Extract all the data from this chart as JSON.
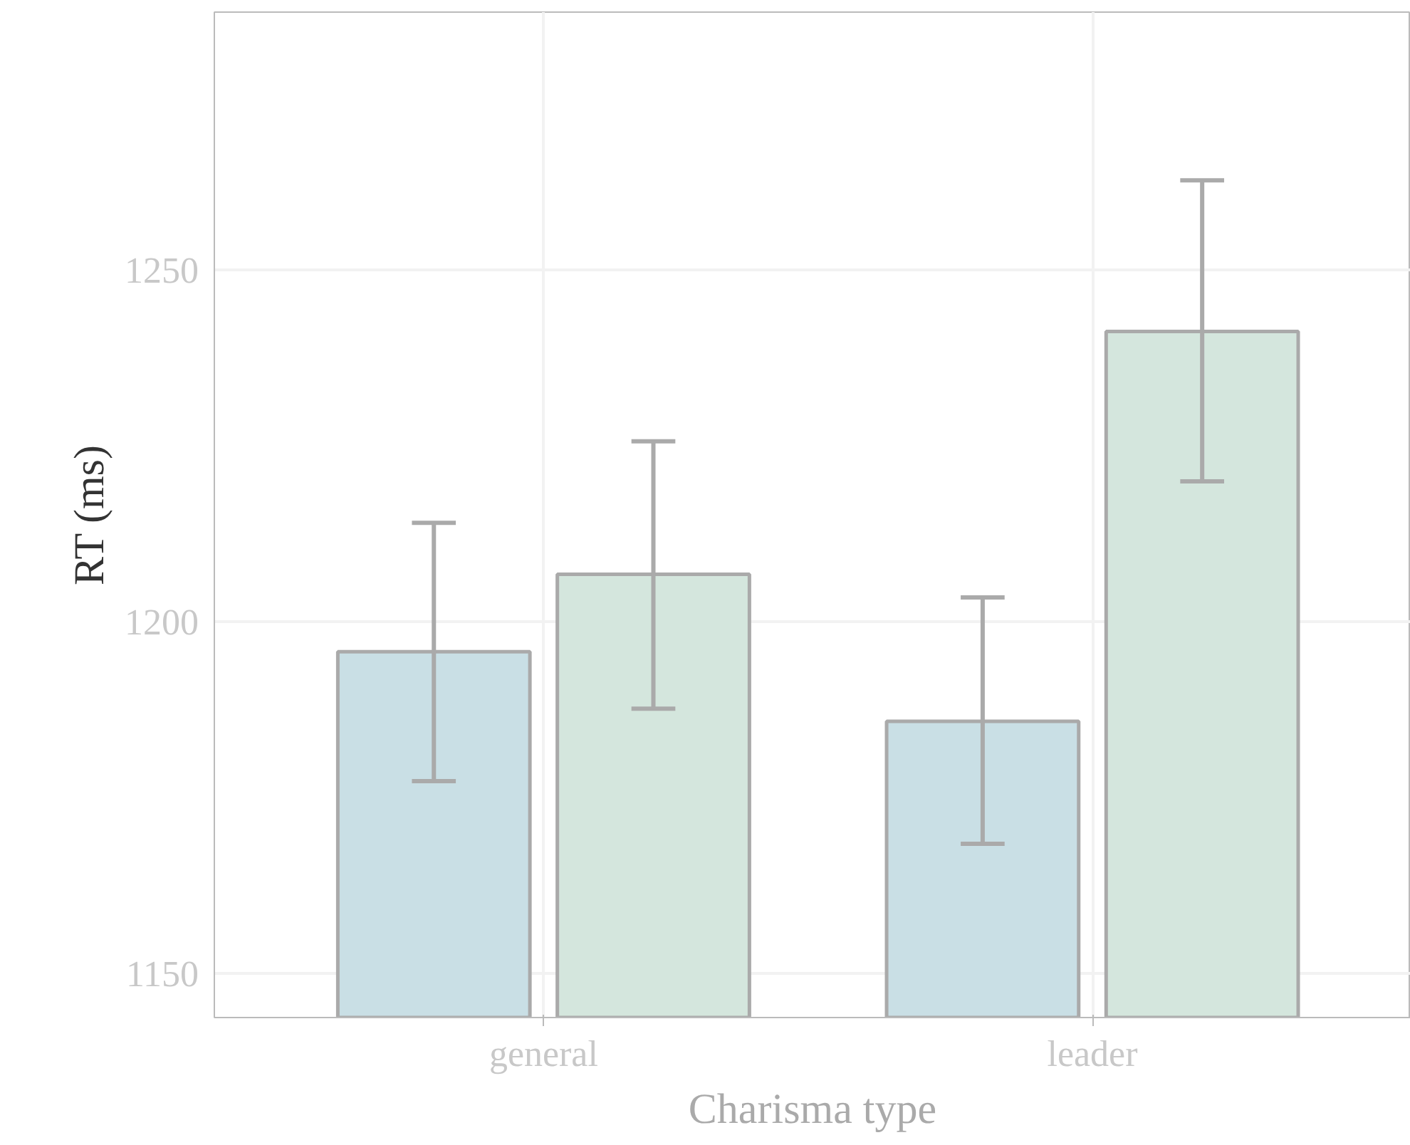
{
  "chart_data": {
    "type": "bar",
    "xlabel": "Charisma type",
    "ylabel": "RT (ms)",
    "categories": [
      "general",
      "leader"
    ],
    "series": [
      {
        "color": "#c9dfe5",
        "values": [
          1195.7,
          1185.8
        ],
        "errors": [
          [
            1177.3,
            1214.0
          ],
          [
            1168.4,
            1203.4
          ]
        ]
      },
      {
        "color": "#d4e6dd",
        "values": [
          1206.7,
          1241.2
        ],
        "errors": [
          [
            1187.6,
            1225.6
          ],
          [
            1219.9,
            1262.7
          ]
        ]
      }
    ],
    "ylim": [
      1143.7,
      1286.6
    ],
    "yticks": [
      1150,
      1200,
      1250
    ],
    "grid": true
  }
}
